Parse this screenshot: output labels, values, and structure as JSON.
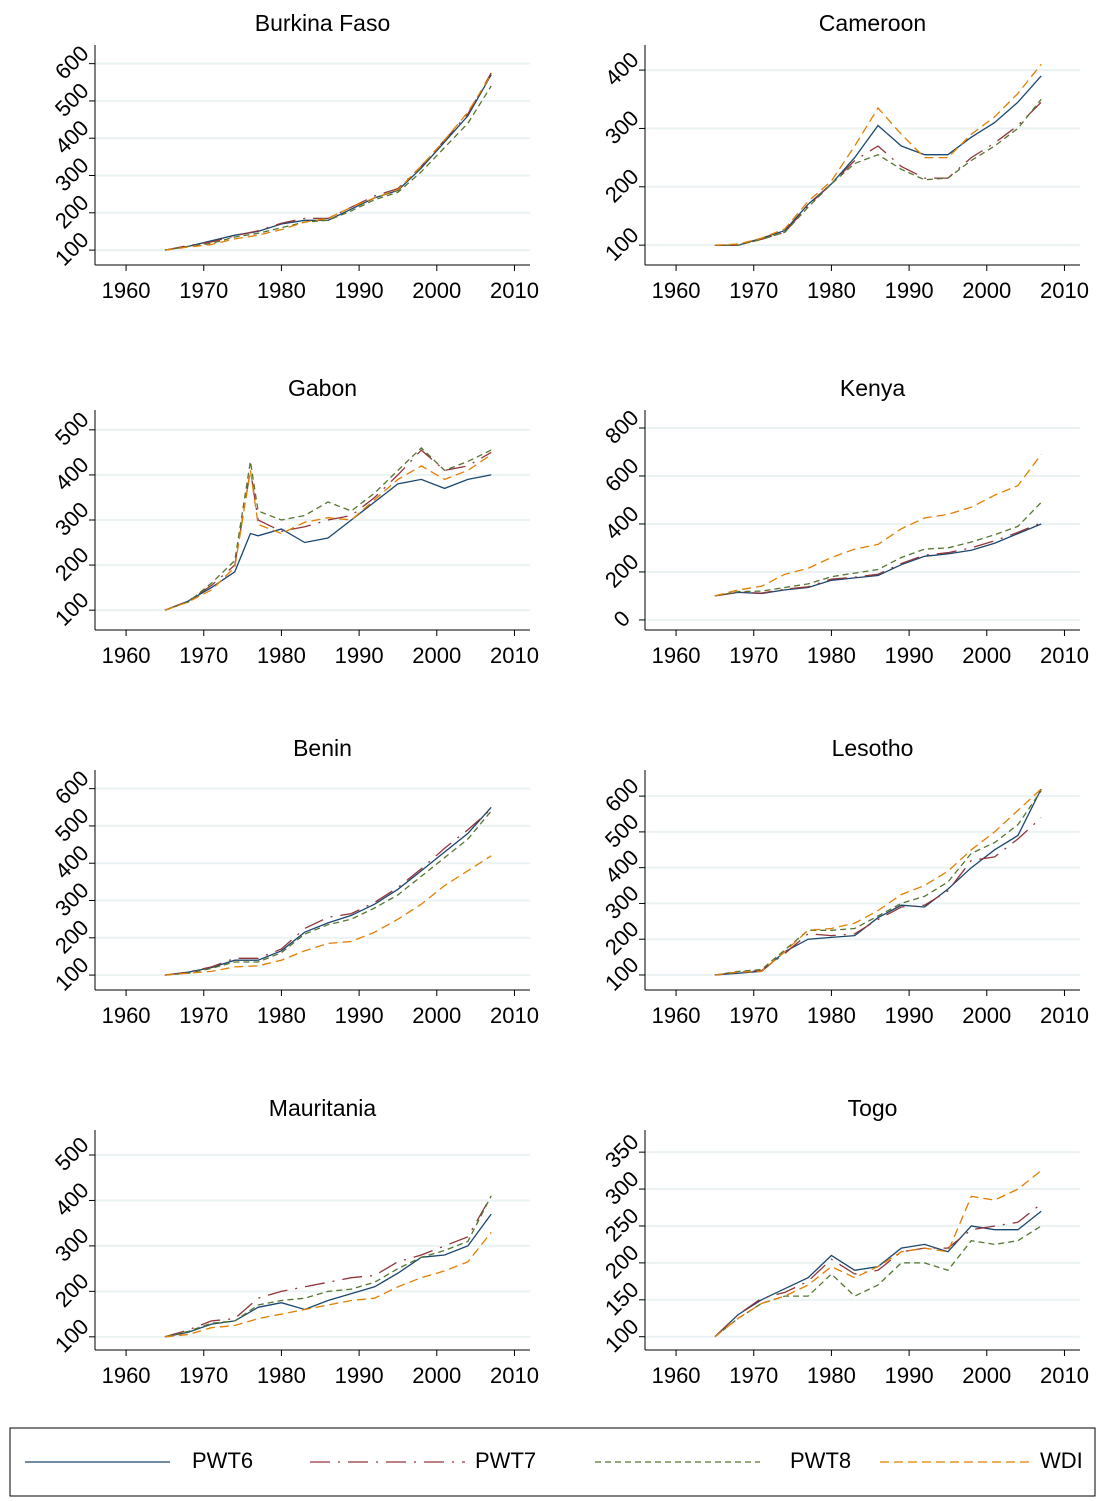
{
  "chart_data": [
    {
      "type": "line",
      "title": "Burkina Faso",
      "x": [
        1965,
        1968,
        1971,
        1974,
        1977,
        1980,
        1983,
        1986,
        1989,
        1992,
        1995,
        1998,
        2001,
        2004,
        2007
      ],
      "series": [
        {
          "name": "PWT6",
          "color": "#1a476f",
          "style": "solid",
          "values": [
            100,
            110,
            125,
            140,
            150,
            170,
            180,
            180,
            210,
            240,
            260,
            320,
            390,
            460,
            570
          ]
        },
        {
          "name": "PWT7",
          "color": "#90353b",
          "style": "longdash",
          "values": [
            100,
            112,
            122,
            138,
            152,
            172,
            185,
            185,
            215,
            245,
            265,
            325,
            395,
            465,
            575
          ]
        },
        {
          "name": "PWT8",
          "color": "#55752f",
          "style": "shortdash",
          "values": [
            100,
            110,
            118,
            135,
            145,
            160,
            175,
            180,
            205,
            235,
            255,
            310,
            375,
            440,
            540
          ]
        },
        {
          "name": "WDI",
          "color": "#e37e00",
          "style": "dash",
          "values": [
            100,
            108,
            115,
            130,
            140,
            155,
            175,
            185,
            215,
            240,
            262,
            325,
            395,
            470,
            570
          ]
        }
      ],
      "xlim": [
        1956,
        2012
      ],
      "ylim": [
        60,
        650
      ],
      "xticks": [
        1960,
        1970,
        1980,
        1990,
        2000,
        2010
      ],
      "yticks": [
        100,
        200,
        300,
        400,
        500,
        600
      ],
      "grid": true
    },
    {
      "type": "line",
      "title": "Cameroon",
      "x": [
        1965,
        1968,
        1971,
        1974,
        1977,
        1980,
        1983,
        1986,
        1989,
        1992,
        1995,
        1998,
        2001,
        2004,
        2007
      ],
      "series": [
        {
          "name": "PWT6",
          "color": "#1a476f",
          "style": "solid",
          "values": [
            100,
            100,
            112,
            125,
            170,
            205,
            250,
            305,
            270,
            255,
            255,
            285,
            310,
            345,
            390
          ]
        },
        {
          "name": "PWT7",
          "color": "#90353b",
          "style": "longdash",
          "values": [
            100,
            100,
            110,
            122,
            168,
            205,
            245,
            270,
            235,
            215,
            215,
            250,
            275,
            305,
            345
          ]
        },
        {
          "name": "PWT8",
          "color": "#55752f",
          "style": "shortdash",
          "values": [
            100,
            100,
            110,
            122,
            165,
            205,
            240,
            255,
            230,
            212,
            215,
            245,
            270,
            300,
            350
          ]
        },
        {
          "name": "WDI",
          "color": "#e37e00",
          "style": "dash",
          "values": [
            100,
            102,
            112,
            128,
            175,
            210,
            270,
            335,
            290,
            250,
            250,
            290,
            320,
            360,
            410
          ]
        }
      ],
      "xlim": [
        1956,
        2012
      ],
      "ylim": [
        66,
        443
      ],
      "xticks": [
        1960,
        1970,
        1980,
        1990,
        2000,
        2010
      ],
      "yticks": [
        100,
        200,
        300,
        400
      ],
      "grid": true
    },
    {
      "type": "line",
      "title": "Gabon",
      "x": [
        1965,
        1968,
        1971,
        1974,
        1976,
        1977,
        1980,
        1983,
        1986,
        1989,
        1992,
        1995,
        1998,
        2001,
        2004,
        2007
      ],
      "series": [
        {
          "name": "PWT6",
          "color": "#1a476f",
          "style": "solid",
          "values": [
            100,
            120,
            150,
            185,
            270,
            265,
            280,
            250,
            260,
            300,
            340,
            380,
            390,
            370,
            390,
            400
          ]
        },
        {
          "name": "PWT7",
          "color": "#90353b",
          "style": "longdash",
          "values": [
            100,
            120,
            155,
            200,
            410,
            300,
            275,
            285,
            300,
            310,
            350,
            400,
            455,
            410,
            420,
            450
          ]
        },
        {
          "name": "PWT8",
          "color": "#55752f",
          "style": "shortdash",
          "values": [
            100,
            118,
            160,
            210,
            430,
            320,
            300,
            310,
            340,
            320,
            360,
            410,
            460,
            410,
            430,
            455
          ]
        },
        {
          "name": "WDI",
          "color": "#e37e00",
          "style": "dash",
          "values": [
            100,
            118,
            145,
            195,
            410,
            290,
            270,
            295,
            305,
            300,
            345,
            390,
            420,
            390,
            410,
            445
          ]
        }
      ],
      "xlim": [
        1956,
        2012
      ],
      "ylim": [
        56,
        544
      ],
      "xticks": [
        1960,
        1970,
        1980,
        1990,
        2000,
        2010
      ],
      "yticks": [
        100,
        200,
        300,
        400,
        500
      ],
      "grid": true
    },
    {
      "type": "line",
      "title": "Kenya",
      "x": [
        1965,
        1968,
        1971,
        1974,
        1977,
        1980,
        1983,
        1986,
        1989,
        1992,
        1995,
        1998,
        2001,
        2004,
        2007
      ],
      "series": [
        {
          "name": "PWT6",
          "color": "#1a476f",
          "style": "solid",
          "values": [
            100,
            115,
            110,
            125,
            135,
            165,
            175,
            185,
            230,
            265,
            275,
            290,
            320,
            360,
            400
          ]
        },
        {
          "name": "PWT7",
          "color": "#90353b",
          "style": "longdash",
          "values": [
            100,
            115,
            112,
            128,
            138,
            170,
            178,
            190,
            235,
            270,
            280,
            300,
            330,
            365,
            405
          ]
        },
        {
          "name": "PWT8",
          "color": "#55752f",
          "style": "shortdash",
          "values": [
            100,
            118,
            120,
            135,
            150,
            180,
            195,
            210,
            260,
            295,
            300,
            325,
            355,
            390,
            490
          ]
        },
        {
          "name": "WDI",
          "color": "#e37e00",
          "style": "dash",
          "values": [
            100,
            125,
            140,
            190,
            215,
            260,
            295,
            315,
            380,
            425,
            440,
            470,
            520,
            560,
            690
          ]
        }
      ],
      "xlim": [
        1956,
        2012
      ],
      "ylim": [
        -42,
        875
      ],
      "xticks": [
        1960,
        1970,
        1980,
        1990,
        2000,
        2010
      ],
      "yticks": [
        0,
        200,
        400,
        600,
        800
      ],
      "grid": true
    },
    {
      "type": "line",
      "title": "Benin",
      "x": [
        1965,
        1968,
        1971,
        1974,
        1977,
        1980,
        1983,
        1986,
        1989,
        1992,
        1995,
        1998,
        2001,
        2004,
        2007
      ],
      "series": [
        {
          "name": "PWT6",
          "color": "#1a476f",
          "style": "solid",
          "values": [
            100,
            108,
            120,
            140,
            140,
            165,
            215,
            240,
            260,
            290,
            330,
            380,
            430,
            480,
            550
          ]
        },
        {
          "name": "PWT7",
          "color": "#90353b",
          "style": "longdash",
          "values": [
            100,
            108,
            122,
            145,
            145,
            170,
            225,
            255,
            265,
            295,
            335,
            385,
            440,
            490,
            545
          ]
        },
        {
          "name": "PWT8",
          "color": "#55752f",
          "style": "shortdash",
          "values": [
            100,
            105,
            118,
            135,
            135,
            160,
            210,
            235,
            250,
            280,
            315,
            365,
            415,
            465,
            540
          ]
        },
        {
          "name": "WDI",
          "color": "#e37e00",
          "style": "dash",
          "values": [
            100,
            105,
            110,
            122,
            125,
            140,
            165,
            185,
            190,
            215,
            250,
            290,
            340,
            380,
            420
          ]
        }
      ],
      "xlim": [
        1956,
        2012
      ],
      "ylim": [
        60,
        650
      ],
      "xticks": [
        1960,
        1970,
        1980,
        1990,
        2000,
        2010
      ],
      "yticks": [
        100,
        200,
        300,
        400,
        500,
        600
      ],
      "grid": true
    },
    {
      "type": "line",
      "title": "Lesotho",
      "x": [
        1965,
        1968,
        1971,
        1974,
        1977,
        1980,
        1983,
        1986,
        1989,
        1992,
        1995,
        1998,
        2001,
        2004,
        2007
      ],
      "series": [
        {
          "name": "PWT6",
          "color": "#1a476f",
          "style": "solid",
          "values": [
            100,
            105,
            110,
            165,
            200,
            205,
            210,
            260,
            295,
            290,
            340,
            400,
            450,
            490,
            620
          ]
        },
        {
          "name": "PWT7",
          "color": "#90353b",
          "style": "longdash",
          "values": [
            100,
            108,
            112,
            160,
            215,
            210,
            215,
            255,
            290,
            295,
            335,
            420,
            430,
            480,
            540
          ]
        },
        {
          "name": "PWT8",
          "color": "#55752f",
          "style": "shortdash",
          "values": [
            100,
            110,
            115,
            170,
            225,
            225,
            230,
            265,
            300,
            320,
            360,
            440,
            470,
            520,
            615
          ]
        },
        {
          "name": "WDI",
          "color": "#e37e00",
          "style": "dash",
          "values": [
            100,
            108,
            110,
            165,
            225,
            230,
            245,
            280,
            325,
            350,
            390,
            450,
            500,
            560,
            620
          ]
        }
      ],
      "xlim": [
        1956,
        2012
      ],
      "ylim": [
        58,
        673
      ],
      "xticks": [
        1960,
        1970,
        1980,
        1990,
        2000,
        2010
      ],
      "yticks": [
        100,
        200,
        300,
        400,
        500,
        600
      ],
      "grid": true
    },
    {
      "type": "line",
      "title": "Mauritania",
      "x": [
        1965,
        1968,
        1971,
        1974,
        1977,
        1980,
        1983,
        1986,
        1989,
        1992,
        1995,
        1998,
        2001,
        2004,
        2007
      ],
      "series": [
        {
          "name": "PWT6",
          "color": "#1a476f",
          "style": "solid",
          "values": [
            100,
            110,
            128,
            135,
            165,
            175,
            160,
            180,
            195,
            210,
            240,
            275,
            280,
            300,
            370
          ]
        },
        {
          "name": "PWT7",
          "color": "#90353b",
          "style": "longdash",
          "values": [
            100,
            115,
            135,
            140,
            185,
            200,
            210,
            220,
            230,
            235,
            265,
            280,
            300,
            320,
            410
          ]
        },
        {
          "name": "PWT8",
          "color": "#55752f",
          "style": "shortdash",
          "values": [
            100,
            112,
            130,
            135,
            170,
            180,
            185,
            200,
            205,
            220,
            250,
            275,
            290,
            310,
            410
          ]
        },
        {
          "name": "WDI",
          "color": "#e37e00",
          "style": "dash",
          "values": [
            100,
            105,
            120,
            125,
            140,
            150,
            160,
            170,
            180,
            185,
            210,
            230,
            245,
            265,
            330
          ]
        }
      ],
      "xlim": [
        1956,
        2012
      ],
      "ylim": [
        71,
        555
      ],
      "xticks": [
        1960,
        1970,
        1980,
        1990,
        2000,
        2010
      ],
      "yticks": [
        100,
        200,
        300,
        400,
        500
      ],
      "grid": true
    },
    {
      "type": "line",
      "title": "Togo",
      "x": [
        1965,
        1968,
        1971,
        1974,
        1977,
        1980,
        1983,
        1986,
        1989,
        1992,
        1995,
        1998,
        2001,
        2004,
        2007
      ],
      "series": [
        {
          "name": "PWT6",
          "color": "#1a476f",
          "style": "solid",
          "values": [
            100,
            130,
            150,
            165,
            180,
            210,
            190,
            195,
            220,
            225,
            215,
            250,
            245,
            245,
            270
          ]
        },
        {
          "name": "PWT7",
          "color": "#90353b",
          "style": "longdash",
          "values": [
            100,
            130,
            152,
            160,
            175,
            205,
            185,
            190,
            215,
            220,
            220,
            245,
            250,
            255,
            280
          ]
        },
        {
          "name": "PWT8",
          "color": "#55752f",
          "style": "shortdash",
          "values": [
            100,
            125,
            145,
            155,
            155,
            185,
            155,
            170,
            200,
            200,
            190,
            230,
            225,
            230,
            250
          ]
        },
        {
          "name": "WDI",
          "color": "#e37e00",
          "style": "dash",
          "values": [
            100,
            125,
            145,
            155,
            170,
            195,
            180,
            195,
            215,
            220,
            215,
            290,
            285,
            300,
            325
          ]
        }
      ],
      "xlim": [
        1956,
        2012
      ],
      "ylim": [
        82,
        380
      ],
      "xticks": [
        1960,
        1970,
        1980,
        1990,
        2000,
        2010
      ],
      "yticks": [
        100,
        150,
        200,
        250,
        300,
        350
      ],
      "grid": true
    }
  ]
}
